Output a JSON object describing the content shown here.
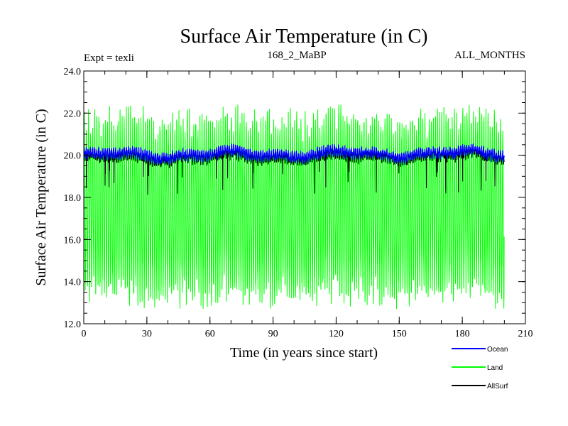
{
  "chart_data": {
    "type": "line",
    "title": "Surface Air Temperature (in C)",
    "experiment_label": "Expt = texli",
    "subtitle": "168_2_MaBP",
    "period_label": "ALL_MONTHS",
    "xlabel": "Time (in years since start)",
    "ylabel": "Surface Air Temperature (in C)",
    "xlim": [
      0,
      210
    ],
    "ylim": [
      12.0,
      24.0
    ],
    "x_ticks": [
      0,
      30,
      60,
      90,
      120,
      150,
      180,
      210
    ],
    "x_tick_labels": [
      "0",
      "30",
      "60",
      "90",
      "120",
      "150",
      "180",
      "210"
    ],
    "y_ticks": [
      12.0,
      14.0,
      16.0,
      18.0,
      20.0,
      22.0,
      24.0
    ],
    "y_tick_labels": [
      "12.0",
      "14.0",
      "16.0",
      "18.0",
      "20.0",
      "22.0",
      "24.0"
    ],
    "x_minor_step": 10,
    "y_minor_step": 0.5,
    "grid": false,
    "legend_position": "bottom-right, below plot",
    "n_years": 200,
    "series": [
      {
        "name": "Land",
        "color": "#00ff00",
        "description": "monthly land mean, seasonal cycle",
        "monthly_mean": 17.5,
        "seasonal_peak": 21.6,
        "seasonal_trough": 13.6,
        "max": 22.4,
        "min": 12.6
      },
      {
        "name": "Ocean",
        "color": "#0000ff",
        "description": "monthly ocean mean",
        "mean_start": 20.0,
        "mean_end": 20.1,
        "band_low": 19.6,
        "band_high": 20.4
      },
      {
        "name": "AllSurf",
        "color": "#000000",
        "description": "monthly all-surface mean",
        "typical_value": 19.9,
        "occasional_dips_to": 18.1
      }
    ],
    "legend": [
      "Ocean",
      "Land",
      "AllSurf"
    ]
  }
}
